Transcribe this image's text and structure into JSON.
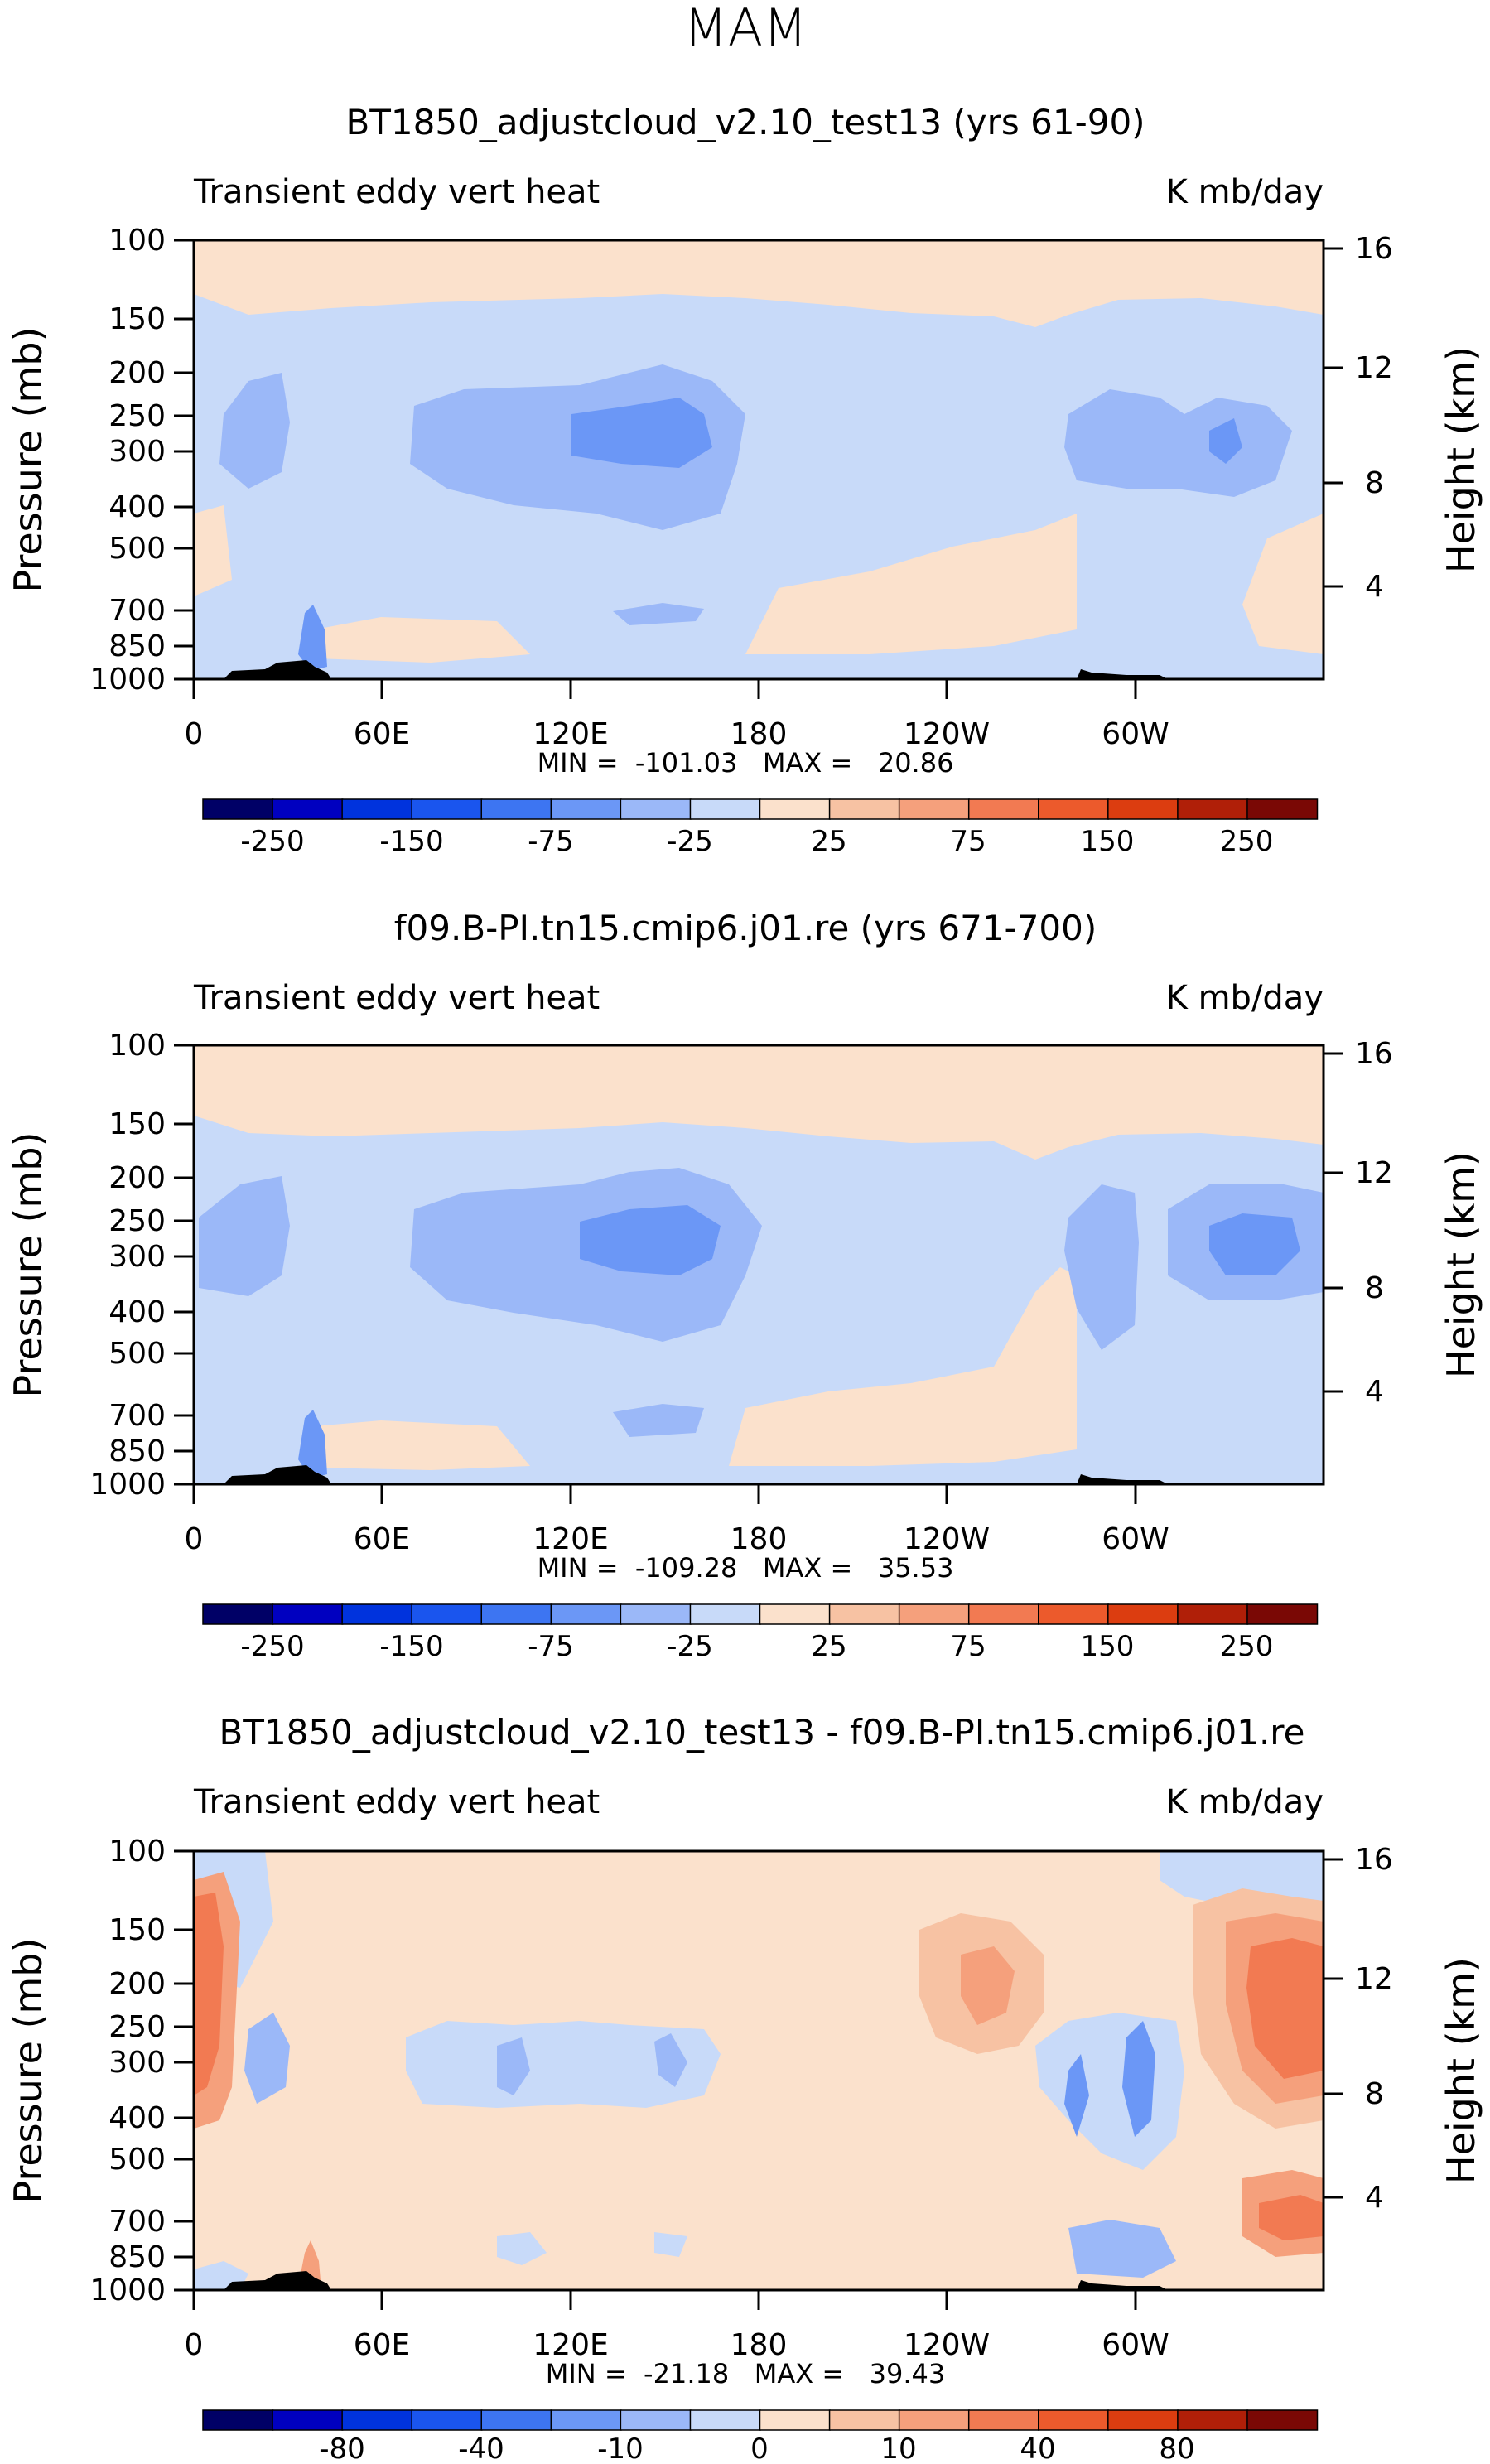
{
  "suptitle": "MAM",
  "colors": {
    "cbar": [
      "#000066",
      "#0000c0",
      "#0033dd",
      "#1a55ee",
      "#3d75f2",
      "#6b97f6",
      "#9bb8f8",
      "#c8daf9",
      "#fbe1cc",
      "#f7c2a3",
      "#f5a07c",
      "#f27a52",
      "#ec5a2c",
      "#dc3d10",
      "#b01f08",
      "#7a0805"
    ],
    "topo": "#000000"
  },
  "chart_data": [
    {
      "type": "heatmap",
      "title": "BT1850_adjustcloud_v2.10_test13 (yrs 61-90)",
      "left_label": "Transient eddy vert heat",
      "right_label": "K mb/day",
      "ylabel": "Pressure (mb)",
      "ylabel_right": "Height (km)",
      "y_ticks": [
        "100",
        "150",
        "200",
        "250",
        "300",
        "400",
        "500",
        "700",
        "850",
        "1000"
      ],
      "y_right_ticks": [
        "16",
        "12",
        "8",
        "4"
      ],
      "x_ticks": [
        "0",
        "60E",
        "120E",
        "180",
        "120W",
        "60W"
      ],
      "stats": "MIN =  -101.03   MAX =   20.86",
      "colorbar_labels": [
        "-250",
        "-150",
        "-75",
        "-25",
        "25",
        "75",
        "150",
        "250"
      ],
      "background_level": "light-blue",
      "features": [
        {
          "name": "upper-positive-band",
          "level": 8
        },
        {
          "name": "mid-negative-120E",
          "level": 6
        },
        {
          "name": "mid-negative-core-150E",
          "level": 5
        },
        {
          "name": "mid-negative-60W",
          "level": 6
        }
      ]
    },
    {
      "type": "heatmap",
      "title": "f09.B-PI.tn15.cmip6.j01.re (yrs 671-700)",
      "left_label": "Transient eddy vert heat",
      "right_label": "K mb/day",
      "ylabel": "Pressure (mb)",
      "ylabel_right": "Height (km)",
      "y_ticks": [
        "100",
        "150",
        "200",
        "250",
        "300",
        "400",
        "500",
        "700",
        "850",
        "1000"
      ],
      "y_right_ticks": [
        "16",
        "12",
        "8",
        "4"
      ],
      "x_ticks": [
        "0",
        "60E",
        "120E",
        "180",
        "120W",
        "60W"
      ],
      "stats": "MIN =  -109.28   MAX =   35.53",
      "colorbar_labels": [
        "-250",
        "-150",
        "-75",
        "-25",
        "25",
        "75",
        "150",
        "250"
      ],
      "background_level": "light-blue",
      "features": [
        {
          "name": "upper-positive-band",
          "level": 8
        },
        {
          "name": "mid-negative-120E",
          "level": 6
        },
        {
          "name": "mid-negative-core-150E",
          "level": 5
        },
        {
          "name": "mid-negative-60W",
          "level": 6
        }
      ]
    },
    {
      "type": "heatmap",
      "title": "BT1850_adjustcloud_v2.10_test13 - f09.B-PI.tn15.cmip6.j01.re",
      "left_label": "Transient eddy vert heat",
      "right_label": "K mb/day",
      "ylabel": "Pressure (mb)",
      "ylabel_right": "Height (km)",
      "y_ticks": [
        "100",
        "150",
        "200",
        "250",
        "300",
        "400",
        "500",
        "700",
        "850",
        "1000"
      ],
      "y_right_ticks": [
        "16",
        "12",
        "8",
        "4"
      ],
      "x_ticks": [
        "0",
        "60E",
        "120E",
        "180",
        "120W",
        "60W"
      ],
      "stats": "MIN =  -21.18   MAX =   39.43",
      "colorbar_labels": [
        "-80",
        "-40",
        "-10",
        "0",
        "10",
        "40",
        "80"
      ],
      "background_level": "light-peach",
      "features": [
        {
          "name": "positive-west-edge",
          "level": 11
        },
        {
          "name": "positive-east-edge",
          "level": 11
        },
        {
          "name": "positive-150W",
          "level": 10
        },
        {
          "name": "negative-scattered",
          "level": 6
        }
      ]
    }
  ]
}
